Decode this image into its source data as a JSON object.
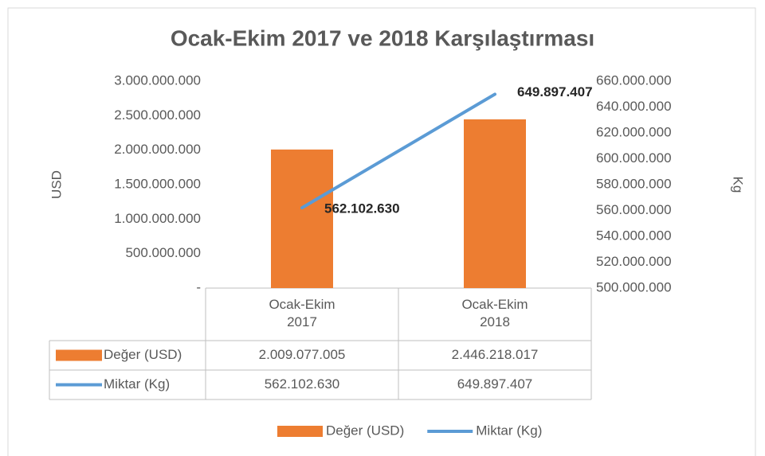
{
  "chart_data": {
    "type": "bar-line",
    "title": "Ocak-Ekim 2017 ve 2018 Karşılaştırması",
    "y_label": "USD",
    "y2_label": "Kg",
    "categories": [
      "Ocak-Ekim 2017",
      "Ocak-Ekim 2018"
    ],
    "series": [
      {
        "name": "Değer (USD)",
        "type": "bar",
        "color": "#ed7d31",
        "values": [
          2009077005,
          2446218017
        ],
        "value_labels": [
          "2.009.077.005",
          "2.446.218.017"
        ]
      },
      {
        "name": "Miktar (Kg)",
        "type": "line",
        "axis": "y2",
        "color": "#5b9bd5",
        "values": [
          562102630,
          649897407
        ],
        "value_labels": [
          "562.102.630",
          "649.897.407"
        ]
      }
    ],
    "ylim": [
      0,
      3000000000
    ],
    "yticks": [
      {
        "value": 0,
        "label": "-"
      },
      {
        "value": 500000000,
        "label": "500.000.000"
      },
      {
        "value": 1000000000,
        "label": "1.000.000.000"
      },
      {
        "value": 1500000000,
        "label": "1.500.000.000"
      },
      {
        "value": 2000000000,
        "label": "2.000.000.000"
      },
      {
        "value": 2500000000,
        "label": "2.500.000.000"
      },
      {
        "value": 3000000000,
        "label": "3.000.000.000"
      }
    ],
    "y2lim": [
      500000000,
      660000000
    ],
    "y2ticks": [
      {
        "value": 500000000,
        "label": "500.000.000"
      },
      {
        "value": 520000000,
        "label": "520.000.000"
      },
      {
        "value": 540000000,
        "label": "540.000.000"
      },
      {
        "value": 560000000,
        "label": "560.000.000"
      },
      {
        "value": 580000000,
        "label": "580.000.000"
      },
      {
        "value": 600000000,
        "label": "600.000.000"
      },
      {
        "value": 620000000,
        "label": "620.000.000"
      },
      {
        "value": 640000000,
        "label": "640.000.000"
      },
      {
        "value": 660000000,
        "label": "660.000.000"
      }
    ],
    "legend": "bottom",
    "data_table": true
  }
}
